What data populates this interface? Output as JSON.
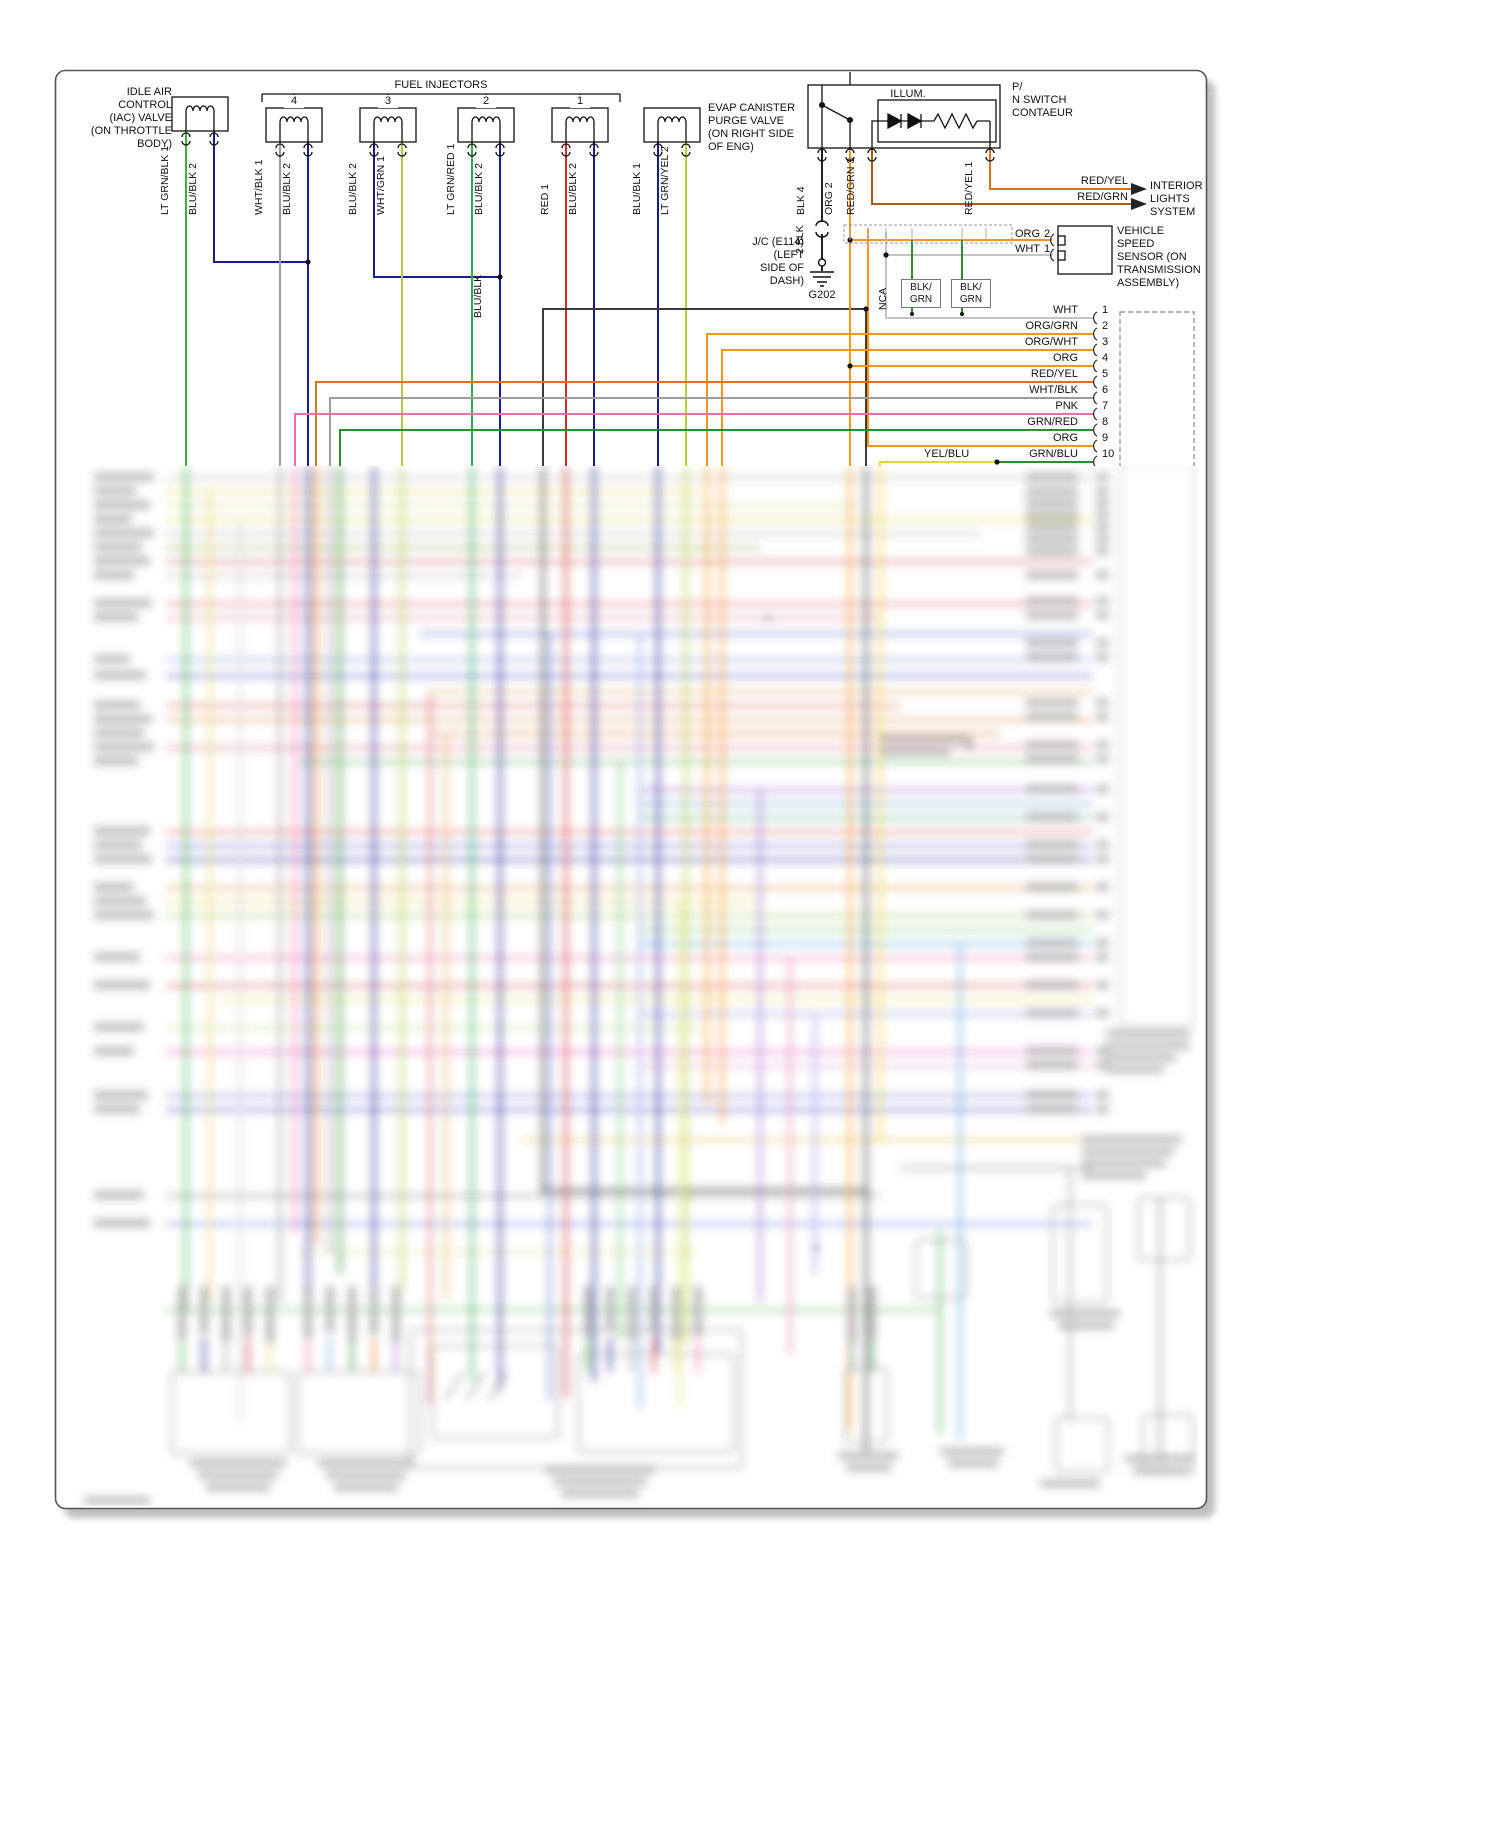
{
  "labels": {
    "iac": "IDLE AIR\nCONTROL\n(IAC) VALVE\n(ON THROTTLE\nBODY)",
    "fuel_injectors": "FUEL INJECTORS",
    "evap": "EVAP CANISTER\nPURGE VALVE\n(ON RIGHT SIDE\nOF ENG)",
    "illum": "ILLUM.",
    "pn_switch": "P/\nN SWITCH\nCONTAEUR",
    "interior_lights": "INTERIOR\nLIGHTS\nSYSTEM",
    "red_yel": "RED/YEL",
    "red_grn": "RED/GRN",
    "jc": "J/C (E114)\n(LEFT\nSIDE OF\nDASH)",
    "two_blk": "2 BLK",
    "g202": "G202",
    "vss": "VEHICLE\nSPEED\nSENSOR (ON\nTRANSMISSION\nASSEMBLY)",
    "nca": "NCA",
    "blk_grn_1": "BLK/\nGRN",
    "blk_grn_2": "BLK/\nGRN",
    "yel_blu": "YEL/BLU",
    "blu_blk_bus": "BLU/BLK"
  },
  "injector_numbers": [
    "4",
    "3",
    "2",
    "1"
  ],
  "wire_labels": [
    {
      "text": "LT GRN/BLK 1"
    },
    {
      "text": "BLU/BLK 2"
    },
    {
      "text": "WHT/BLK 1"
    },
    {
      "text": "BLU/BLK 2"
    },
    {
      "text": "BLU/BLK 2"
    },
    {
      "text": "WHT/GRN 1"
    },
    {
      "text": "LT GRN/RED 1"
    },
    {
      "text": "BLU/BLK 2"
    },
    {
      "text": "RED 1"
    },
    {
      "text": "BLU/BLK 2"
    },
    {
      "text": "BLU/BLK 1"
    },
    {
      "text": "LT GRN/YEL 2"
    },
    {
      "text": "BLK 4"
    },
    {
      "text": "ORG 2"
    },
    {
      "text": "RED/GRN 3"
    },
    {
      "text": "RED/YEL 1"
    }
  ],
  "vss_rows": [
    {
      "label": "ORG",
      "pin": "2"
    },
    {
      "label": "WHT",
      "pin": "1"
    }
  ],
  "pin_rows": [
    {
      "label": "WHT",
      "pin": "1"
    },
    {
      "label": "ORG/GRN",
      "pin": "2"
    },
    {
      "label": "ORG/WHT",
      "pin": "3"
    },
    {
      "label": "ORG",
      "pin": "4"
    },
    {
      "label": "RED/YEL",
      "pin": "5"
    },
    {
      "label": "WHT/BLK",
      "pin": "6"
    },
    {
      "label": "PNK",
      "pin": "7"
    },
    {
      "label": "GRN/RED",
      "pin": "8"
    },
    {
      "label": "ORG",
      "pin": "9"
    },
    {
      "label": "GRN/BLU",
      "pin": "10"
    }
  ],
  "palette": {
    "lt_grn": "#3cb043",
    "blu_blk": "#1b1b8f",
    "wht_blk": "#9c9c9c",
    "wht_grn": "#a8cf45",
    "red": "#d42a2a",
    "lt_grn_yel": "#b9cf3a",
    "blk": "#222222",
    "org": "#f7941d",
    "red_grn": "#b05a10",
    "red_yel": "#e0701a",
    "pnk": "#f06eaa",
    "grn": "#2c8c30",
    "yel": "#e8d532",
    "wht": "#c4c4c4"
  }
}
